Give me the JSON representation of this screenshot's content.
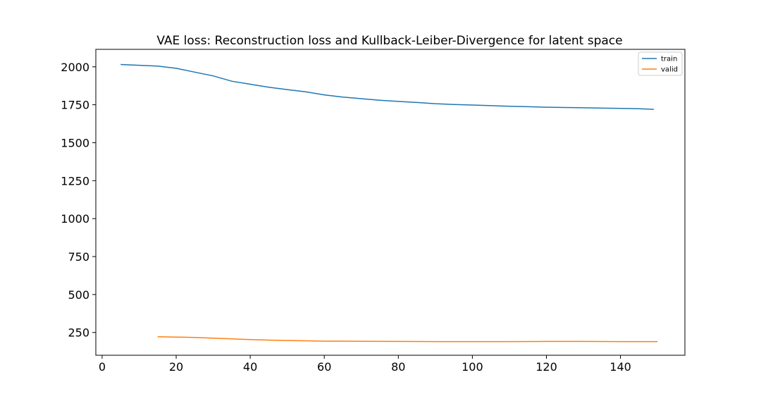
{
  "chart_data": {
    "type": "line",
    "title": "VAE loss: Reconstruction loss and Kullback-Leiber-Divergence for latent space",
    "xlabel": "",
    "ylabel": "",
    "xlim": [
      -1.7,
      157.4
    ],
    "ylim": [
      100,
      2115
    ],
    "xticks": [
      0,
      20,
      40,
      60,
      80,
      100,
      120,
      140
    ],
    "yticks": [
      250,
      500,
      750,
      1000,
      1250,
      1500,
      1750,
      2000
    ],
    "grid": false,
    "legend_position": "top-right",
    "series": [
      {
        "name": "train",
        "color": "#1f77b4",
        "x": [
          5,
          10,
          15,
          20,
          25,
          30,
          35,
          40,
          45,
          50,
          55,
          60,
          65,
          70,
          75,
          80,
          85,
          90,
          95,
          100,
          105,
          110,
          115,
          120,
          125,
          130,
          135,
          140,
          145,
          149
        ],
        "y": [
          2015,
          2010,
          2005,
          1990,
          1965,
          1940,
          1905,
          1885,
          1865,
          1850,
          1835,
          1815,
          1800,
          1790,
          1780,
          1772,
          1765,
          1757,
          1752,
          1748,
          1744,
          1740,
          1737,
          1734,
          1732,
          1730,
          1728,
          1726,
          1724,
          1720
        ]
      },
      {
        "name": "valid",
        "color": "#ff7f0e",
        "x": [
          15,
          20,
          25,
          30,
          35,
          40,
          45,
          50,
          55,
          60,
          70,
          80,
          90,
          100,
          110,
          120,
          130,
          140,
          150
        ],
        "y": [
          222,
          220,
          217,
          213,
          208,
          203,
          200,
          197,
          195,
          193,
          192,
          191,
          190,
          190,
          190,
          191,
          191,
          190,
          190
        ]
      }
    ]
  }
}
